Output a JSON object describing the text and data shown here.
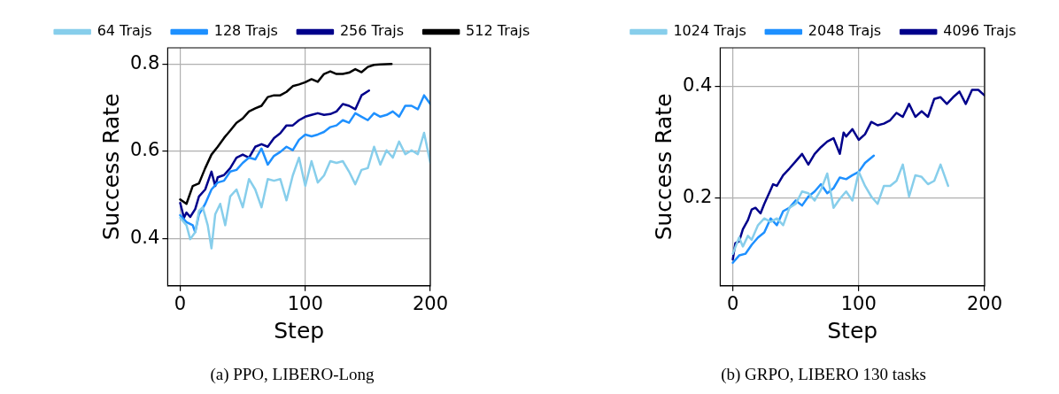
{
  "chart_data": [
    {
      "type": "line",
      "xlabel": "Step",
      "ylabel": "Success Rate",
      "annotations": [
        "(a) PPO, LIBERO-Long"
      ],
      "xlim": [
        -10,
        200
      ],
      "xticks": [
        0,
        100,
        200
      ],
      "ylim": [
        0.291,
        0.837
      ],
      "yticks": [
        0.4,
        0.6,
        0.8
      ],
      "grid": true,
      "legend": "top",
      "line_style": "solid",
      "marker": "none",
      "series": [
        {
          "name": "64 Trajs",
          "color": "#87ceeb",
          "x": [
            0,
            5,
            8,
            12,
            15,
            18,
            22,
            25,
            28,
            32,
            36,
            40,
            45,
            50,
            55,
            60,
            65,
            70,
            75,
            80,
            85,
            90,
            95,
            100,
            105,
            110,
            115,
            120,
            125,
            130,
            135,
            140,
            145,
            150,
            155,
            160,
            165,
            170,
            175,
            180,
            185,
            190,
            195,
            200
          ],
          "values": [
            0.447,
            0.43,
            0.398,
            0.414,
            0.463,
            0.471,
            0.43,
            0.377,
            0.455,
            0.479,
            0.43,
            0.496,
            0.512,
            0.471,
            0.536,
            0.512,
            0.471,
            0.536,
            0.532,
            0.536,
            0.487,
            0.544,
            0.585,
            0.52,
            0.577,
            0.528,
            0.544,
            0.577,
            0.573,
            0.577,
            0.553,
            0.524,
            0.557,
            0.561,
            0.61,
            0.569,
            0.602,
            0.585,
            0.622,
            0.593,
            0.602,
            0.593,
            0.642,
            0.573
          ]
        },
        {
          "name": "128 Trajs",
          "color": "#1e90ff",
          "x": [
            0,
            5,
            10,
            12,
            15,
            20,
            25,
            30,
            35,
            40,
            45,
            50,
            55,
            60,
            65,
            70,
            75,
            80,
            85,
            90,
            95,
            100,
            105,
            110,
            115,
            120,
            125,
            130,
            135,
            140,
            145,
            150,
            155,
            160,
            165,
            170,
            175,
            180,
            185,
            190,
            195,
            200
          ],
          "values": [
            0.453,
            0.437,
            0.43,
            0.414,
            0.455,
            0.479,
            0.512,
            0.528,
            0.532,
            0.553,
            0.557,
            0.573,
            0.585,
            0.581,
            0.606,
            0.569,
            0.589,
            0.598,
            0.61,
            0.602,
            0.626,
            0.638,
            0.634,
            0.638,
            0.644,
            0.655,
            0.659,
            0.671,
            0.665,
            0.687,
            0.679,
            0.671,
            0.687,
            0.679,
            0.683,
            0.691,
            0.679,
            0.704,
            0.704,
            0.696,
            0.728,
            0.708
          ]
        },
        {
          "name": "256 Trajs",
          "color": "#00008b",
          "x": [
            0,
            3,
            5,
            8,
            12,
            15,
            20,
            25,
            28,
            30,
            35,
            40,
            45,
            50,
            55,
            60,
            65,
            70,
            75,
            80,
            85,
            90,
            95,
            100,
            105,
            110,
            115,
            120,
            125,
            130,
            135,
            140,
            145,
            151
          ],
          "values": [
            0.481,
            0.447,
            0.459,
            0.449,
            0.467,
            0.496,
            0.512,
            0.553,
            0.52,
            0.54,
            0.545,
            0.561,
            0.585,
            0.592,
            0.585,
            0.61,
            0.616,
            0.61,
            0.63,
            0.641,
            0.659,
            0.659,
            0.671,
            0.679,
            0.683,
            0.687,
            0.683,
            0.685,
            0.691,
            0.708,
            0.704,
            0.696,
            0.728,
            0.739
          ]
        },
        {
          "name": "512 Trajs",
          "color": "#000000",
          "x": [
            0,
            5,
            10,
            15,
            20,
            25,
            30,
            35,
            40,
            45,
            50,
            55,
            60,
            65,
            70,
            75,
            80,
            85,
            90,
            95,
            100,
            105,
            110,
            115,
            120,
            125,
            130,
            135,
            140,
            145,
            150,
            155,
            160,
            169
          ],
          "values": [
            0.489,
            0.479,
            0.52,
            0.526,
            0.561,
            0.592,
            0.61,
            0.63,
            0.647,
            0.665,
            0.675,
            0.691,
            0.698,
            0.704,
            0.724,
            0.728,
            0.728,
            0.736,
            0.749,
            0.753,
            0.758,
            0.765,
            0.759,
            0.777,
            0.783,
            0.777,
            0.777,
            0.78,
            0.788,
            0.781,
            0.793,
            0.798,
            0.799,
            0.8
          ]
        }
      ]
    },
    {
      "type": "line",
      "xlabel": "Step",
      "ylabel": "Success Rate",
      "annotations": [
        "(b) GRPO, LIBERO 130 tasks"
      ],
      "xlim": [
        -10,
        200
      ],
      "xticks": [
        0,
        100,
        200
      ],
      "ylim": [
        0.044,
        0.468
      ],
      "yticks": [
        0.2,
        0.4
      ],
      "grid": true,
      "legend": "top",
      "line_style": "solid",
      "marker": "none",
      "series": [
        {
          "name": "1024 Trajs",
          "color": "#87ceeb",
          "x": [
            0,
            5,
            8,
            12,
            15,
            20,
            25,
            30,
            35,
            40,
            45,
            50,
            55,
            60,
            65,
            70,
            75,
            80,
            85,
            90,
            95,
            100,
            105,
            110,
            115,
            120,
            125,
            130,
            135,
            140,
            145,
            150,
            155,
            160,
            165,
            171
          ],
          "values": [
            0.101,
            0.13,
            0.114,
            0.133,
            0.126,
            0.152,
            0.164,
            0.158,
            0.164,
            0.152,
            0.183,
            0.19,
            0.212,
            0.209,
            0.196,
            0.215,
            0.244,
            0.183,
            0.199,
            0.212,
            0.196,
            0.247,
            0.222,
            0.203,
            0.19,
            0.222,
            0.222,
            0.231,
            0.26,
            0.203,
            0.241,
            0.238,
            0.225,
            0.231,
            0.26,
            0.222
          ]
        },
        {
          "name": "2048 Trajs",
          "color": "#1e90ff",
          "x": [
            0,
            5,
            10,
            15,
            20,
            25,
            30,
            35,
            40,
            45,
            50,
            55,
            60,
            65,
            70,
            75,
            80,
            85,
            90,
            95,
            100,
            105,
            112
          ],
          "values": [
            0.085,
            0.098,
            0.101,
            0.117,
            0.13,
            0.139,
            0.164,
            0.152,
            0.177,
            0.183,
            0.196,
            0.187,
            0.203,
            0.212,
            0.225,
            0.209,
            0.218,
            0.237,
            0.234,
            0.241,
            0.247,
            0.263,
            0.276
          ]
        },
        {
          "name": "4096 Trajs",
          "color": "#00008b",
          "x": [
            0,
            2,
            5,
            8,
            12,
            15,
            18,
            22,
            25,
            30,
            32,
            35,
            40,
            45,
            50,
            55,
            60,
            65,
            70,
            75,
            80,
            85,
            88,
            90,
            95,
            100,
            105,
            110,
            115,
            120,
            125,
            130,
            135,
            140,
            145,
            150,
            155,
            160,
            165,
            170,
            175,
            180,
            185,
            190,
            195,
            200
          ],
          "values": [
            0.091,
            0.12,
            0.123,
            0.145,
            0.161,
            0.18,
            0.183,
            0.173,
            0.19,
            0.215,
            0.225,
            0.222,
            0.241,
            0.253,
            0.266,
            0.279,
            0.26,
            0.279,
            0.291,
            0.301,
            0.307,
            0.279,
            0.317,
            0.31,
            0.323,
            0.304,
            0.314,
            0.336,
            0.33,
            0.333,
            0.339,
            0.352,
            0.345,
            0.368,
            0.345,
            0.355,
            0.345,
            0.377,
            0.38,
            0.368,
            0.38,
            0.39,
            0.368,
            0.393,
            0.393,
            0.383
          ]
        }
      ]
    }
  ]
}
